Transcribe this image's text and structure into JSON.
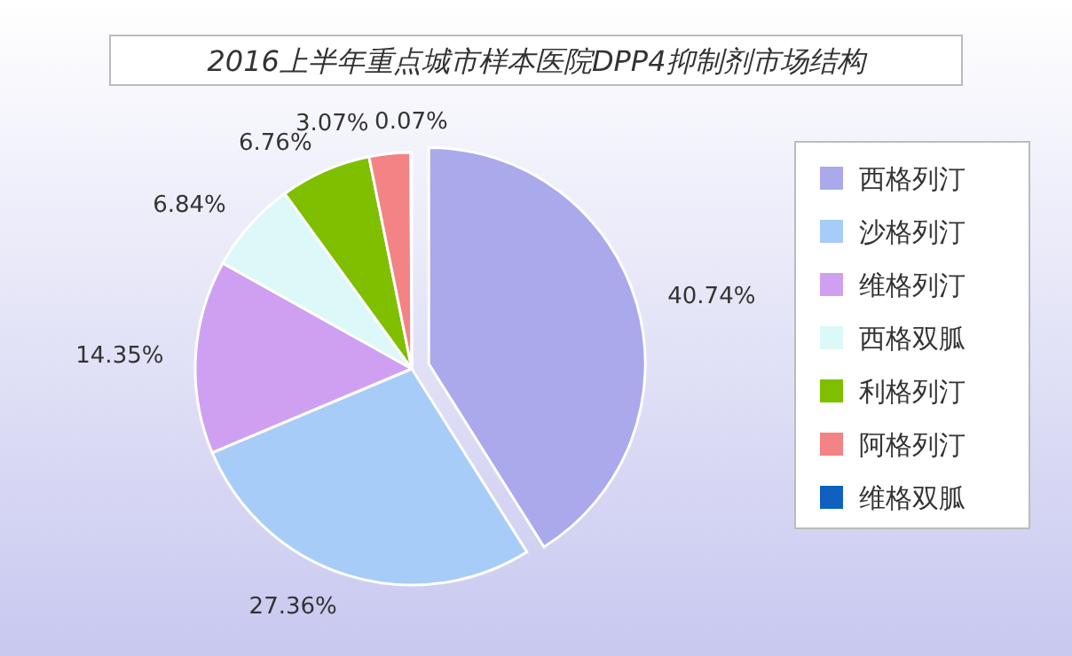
{
  "chart_data": {
    "type": "pie",
    "title": "2016上半年重点城市样本医院DPP4抑制剂市场结构",
    "categories": [
      "西格列汀",
      "沙格列汀",
      "维格列汀",
      "西格双胍",
      "利格列汀",
      "阿格列汀",
      "维格双胍"
    ],
    "values": [
      40.74,
      27.36,
      14.35,
      6.84,
      6.76,
      3.07,
      0.07
    ],
    "value_labels": [
      "40.74%",
      "27.36%",
      "14.35%",
      "6.84%",
      "6.76%",
      "3.07%",
      "0.07%"
    ],
    "colors": [
      "#a9a9ec",
      "#a8ccf8",
      "#cfa0f2",
      "#dcf8f8",
      "#7fbf00",
      "#f38385",
      "#1060c0"
    ],
    "legend": "right"
  }
}
